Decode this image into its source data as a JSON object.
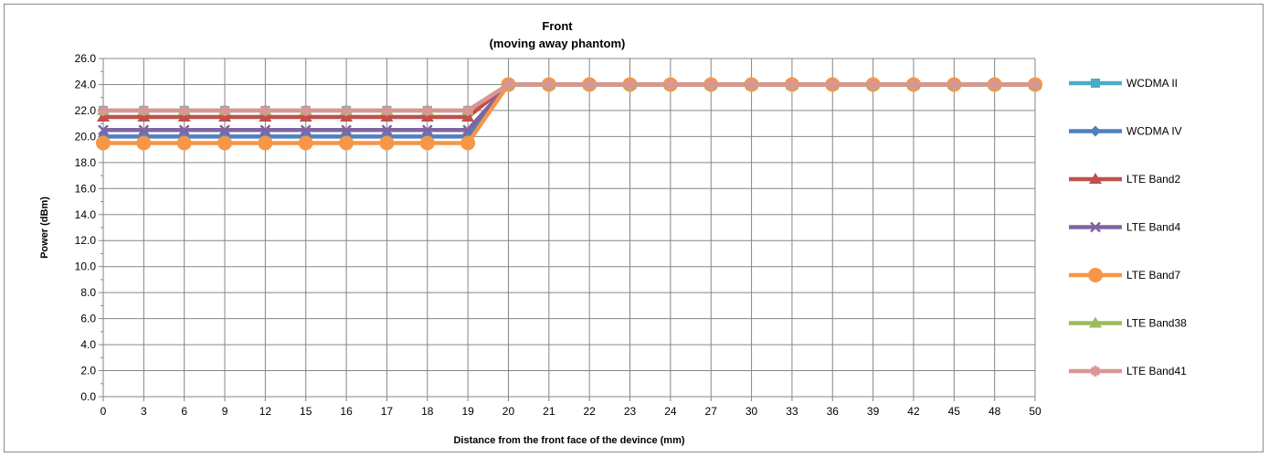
{
  "chart_data": {
    "type": "line",
    "title": "Front",
    "subtitle": "(moving away phantom)",
    "xlabel": "Distance from the front face of the devince (mm)",
    "ylabel": "Power (dBm)",
    "categories": [
      "0",
      "3",
      "6",
      "9",
      "12",
      "15",
      "16",
      "17",
      "18",
      "19",
      "20",
      "21",
      "22",
      "23",
      "24",
      "27",
      "30",
      "33",
      "36",
      "39",
      "42",
      "45",
      "48",
      "50"
    ],
    "ylim": [
      0,
      26
    ],
    "ytick_step": 2,
    "grid": true,
    "legend_position": "right",
    "series": [
      {
        "name": "WCDMA II",
        "color": "#4bacc6",
        "marker": "square",
        "values": [
          22,
          22,
          22,
          22,
          22,
          22,
          22,
          22,
          22,
          22,
          24,
          24,
          24,
          24,
          24,
          24,
          24,
          24,
          24,
          24,
          24,
          24,
          24,
          24
        ]
      },
      {
        "name": "WCDMA IV",
        "color": "#4f81bd",
        "marker": "diamond",
        "values": [
          20,
          20,
          20,
          20,
          20,
          20,
          20,
          20,
          20,
          20,
          24,
          24,
          24,
          24,
          24,
          24,
          24,
          24,
          24,
          24,
          24,
          24,
          24,
          24
        ]
      },
      {
        "name": "LTE Band2",
        "color": "#c0504d",
        "marker": "triangle",
        "values": [
          21.5,
          21.5,
          21.5,
          21.5,
          21.5,
          21.5,
          21.5,
          21.5,
          21.5,
          21.5,
          24,
          24,
          24,
          24,
          24,
          24,
          24,
          24,
          24,
          24,
          24,
          24,
          24,
          24
        ]
      },
      {
        "name": "LTE Band4",
        "color": "#8064a2",
        "marker": "x",
        "values": [
          20.5,
          20.5,
          20.5,
          20.5,
          20.5,
          20.5,
          20.5,
          20.5,
          20.5,
          20.5,
          24,
          24,
          24,
          24,
          24,
          24,
          24,
          24,
          24,
          24,
          24,
          24,
          24,
          24
        ]
      },
      {
        "name": "LTE Band7",
        "color": "#f79646",
        "marker": "circle",
        "values": [
          19.5,
          19.5,
          19.5,
          19.5,
          19.5,
          19.5,
          19.5,
          19.5,
          19.5,
          19.5,
          24,
          24,
          24,
          24,
          24,
          24,
          24,
          24,
          24,
          24,
          24,
          24,
          24,
          24
        ]
      },
      {
        "name": "LTE Band38",
        "color": "#9bbb59",
        "marker": "triangle",
        "values": [
          22,
          22,
          22,
          22,
          22,
          22,
          22,
          22,
          22,
          22,
          24,
          24,
          24,
          24,
          24,
          24,
          24,
          24,
          24,
          24,
          24,
          24,
          24,
          24
        ]
      },
      {
        "name": "LTE Band41",
        "color": "#d99694",
        "marker": "star",
        "values": [
          22,
          22,
          22,
          22,
          22,
          22,
          22,
          22,
          22,
          22,
          24,
          24,
          24,
          24,
          24,
          24,
          24,
          24,
          24,
          24,
          24,
          24,
          24,
          24
        ]
      }
    ]
  }
}
